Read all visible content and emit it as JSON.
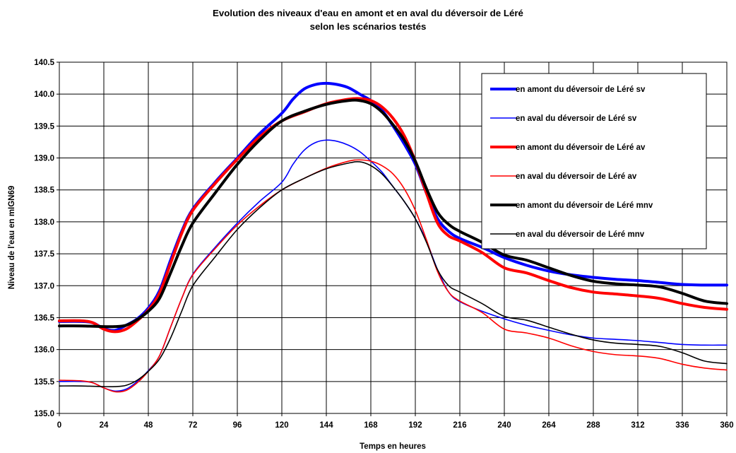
{
  "chart_data": {
    "type": "line",
    "title_line1": "Evolution des niveaux d'eau en amont et en aval du déversoir de Léré",
    "title_line2": "selon les scénarios testés",
    "xlabel": "Temps en heures",
    "ylabel": "Niveau de l'eau en mIGN69",
    "xlim": [
      0,
      360
    ],
    "ylim": [
      135.0,
      140.5
    ],
    "x_ticks": [
      0,
      24,
      48,
      72,
      96,
      120,
      144,
      168,
      192,
      216,
      240,
      264,
      288,
      312,
      336,
      360
    ],
    "y_ticks": [
      135.0,
      135.5,
      136.0,
      136.5,
      137.0,
      137.5,
      138.0,
      138.5,
      139.0,
      139.5,
      140.0,
      140.5
    ],
    "x_tick_labels": [
      "0",
      "24",
      "48",
      "72",
      "96",
      "120",
      "144",
      "168",
      "192",
      "216",
      "240",
      "264",
      "288",
      "312",
      "336",
      "360"
    ],
    "y_tick_labels": [
      "135.0",
      "135.5",
      "136.0",
      "136.5",
      "137.0",
      "137.5",
      "138.0",
      "138.5",
      "139.0",
      "139.5",
      "140.0",
      "140.5"
    ],
    "grid": true,
    "legend_position": "top-right",
    "series": [
      {
        "name": "en amont du déversoir de Léré sv",
        "color": "#0000ff",
        "weight": "thick",
        "points": [
          [
            0,
            136.44
          ],
          [
            12,
            136.44
          ],
          [
            18,
            136.42
          ],
          [
            24,
            136.33
          ],
          [
            30,
            136.3
          ],
          [
            36,
            136.38
          ],
          [
            42,
            136.48
          ],
          [
            48,
            136.65
          ],
          [
            54,
            136.92
          ],
          [
            60,
            137.4
          ],
          [
            66,
            137.85
          ],
          [
            72,
            138.2
          ],
          [
            84,
            138.62
          ],
          [
            96,
            139.0
          ],
          [
            108,
            139.38
          ],
          [
            120,
            139.7
          ],
          [
            126,
            139.92
          ],
          [
            132,
            140.08
          ],
          [
            138,
            140.15
          ],
          [
            144,
            140.17
          ],
          [
            150,
            140.15
          ],
          [
            156,
            140.1
          ],
          [
            162,
            140.0
          ],
          [
            168,
            139.9
          ],
          [
            174,
            139.75
          ],
          [
            180,
            139.5
          ],
          [
            186,
            139.22
          ],
          [
            192,
            138.9
          ],
          [
            198,
            138.45
          ],
          [
            204,
            138.05
          ],
          [
            210,
            137.85
          ],
          [
            216,
            137.74
          ],
          [
            228,
            137.6
          ],
          [
            240,
            137.44
          ],
          [
            252,
            137.32
          ],
          [
            264,
            137.23
          ],
          [
            276,
            137.17
          ],
          [
            288,
            137.13
          ],
          [
            300,
            137.1
          ],
          [
            312,
            137.08
          ],
          [
            324,
            137.05
          ],
          [
            336,
            137.02
          ],
          [
            348,
            137.01
          ],
          [
            360,
            137.01
          ]
        ]
      },
      {
        "name": "en aval du déversoir de Léré sv",
        "color": "#0000ff",
        "weight": "thin",
        "points": [
          [
            0,
            135.5
          ],
          [
            12,
            135.5
          ],
          [
            18,
            135.48
          ],
          [
            24,
            135.4
          ],
          [
            30,
            135.35
          ],
          [
            36,
            135.38
          ],
          [
            42,
            135.5
          ],
          [
            48,
            135.67
          ],
          [
            54,
            135.9
          ],
          [
            60,
            136.35
          ],
          [
            66,
            136.8
          ],
          [
            72,
            137.18
          ],
          [
            84,
            137.6
          ],
          [
            96,
            137.98
          ],
          [
            108,
            138.32
          ],
          [
            120,
            138.62
          ],
          [
            126,
            138.9
          ],
          [
            132,
            139.12
          ],
          [
            138,
            139.24
          ],
          [
            144,
            139.28
          ],
          [
            150,
            139.26
          ],
          [
            156,
            139.2
          ],
          [
            162,
            139.1
          ],
          [
            168,
            138.95
          ],
          [
            174,
            138.78
          ],
          [
            180,
            138.55
          ],
          [
            186,
            138.32
          ],
          [
            192,
            138.05
          ],
          [
            198,
            137.7
          ],
          [
            204,
            137.25
          ],
          [
            210,
            136.9
          ],
          [
            216,
            136.75
          ],
          [
            228,
            136.6
          ],
          [
            240,
            136.48
          ],
          [
            252,
            136.38
          ],
          [
            264,
            136.3
          ],
          [
            276,
            136.23
          ],
          [
            288,
            136.18
          ],
          [
            300,
            136.16
          ],
          [
            312,
            136.14
          ],
          [
            324,
            136.11
          ],
          [
            336,
            136.08
          ],
          [
            348,
            136.07
          ],
          [
            360,
            136.07
          ]
        ]
      },
      {
        "name": "en amont du déversoir de Léré av",
        "color": "#ff0000",
        "weight": "thick",
        "points": [
          [
            0,
            136.45
          ],
          [
            12,
            136.45
          ],
          [
            18,
            136.42
          ],
          [
            24,
            136.32
          ],
          [
            30,
            136.28
          ],
          [
            36,
            136.32
          ],
          [
            42,
            136.45
          ],
          [
            48,
            136.62
          ],
          [
            54,
            136.88
          ],
          [
            60,
            137.35
          ],
          [
            66,
            137.82
          ],
          [
            72,
            138.18
          ],
          [
            84,
            138.6
          ],
          [
            96,
            138.98
          ],
          [
            108,
            139.33
          ],
          [
            120,
            139.58
          ],
          [
            132,
            139.72
          ],
          [
            144,
            139.85
          ],
          [
            156,
            139.92
          ],
          [
            162,
            139.93
          ],
          [
            168,
            139.9
          ],
          [
            174,
            139.8
          ],
          [
            180,
            139.62
          ],
          [
            186,
            139.35
          ],
          [
            192,
            138.95
          ],
          [
            198,
            138.45
          ],
          [
            204,
            137.98
          ],
          [
            210,
            137.78
          ],
          [
            216,
            137.7
          ],
          [
            228,
            137.52
          ],
          [
            240,
            137.28
          ],
          [
            252,
            137.2
          ],
          [
            264,
            137.08
          ],
          [
            276,
            136.97
          ],
          [
            288,
            136.9
          ],
          [
            300,
            136.87
          ],
          [
            312,
            136.84
          ],
          [
            324,
            136.8
          ],
          [
            336,
            136.72
          ],
          [
            348,
            136.66
          ],
          [
            360,
            136.63
          ]
        ]
      },
      {
        "name": "en aval du déversoir de Léré av",
        "color": "#ff0000",
        "weight": "thin",
        "points": [
          [
            0,
            135.52
          ],
          [
            12,
            135.51
          ],
          [
            18,
            135.48
          ],
          [
            24,
            135.4
          ],
          [
            30,
            135.34
          ],
          [
            36,
            135.36
          ],
          [
            42,
            135.48
          ],
          [
            48,
            135.66
          ],
          [
            54,
            135.9
          ],
          [
            60,
            136.35
          ],
          [
            66,
            136.8
          ],
          [
            72,
            137.17
          ],
          [
            84,
            137.58
          ],
          [
            96,
            137.95
          ],
          [
            108,
            138.25
          ],
          [
            120,
            138.5
          ],
          [
            132,
            138.68
          ],
          [
            144,
            138.84
          ],
          [
            156,
            138.95
          ],
          [
            162,
            138.97
          ],
          [
            168,
            138.95
          ],
          [
            174,
            138.88
          ],
          [
            180,
            138.75
          ],
          [
            186,
            138.52
          ],
          [
            192,
            138.18
          ],
          [
            198,
            137.72
          ],
          [
            204,
            137.22
          ],
          [
            210,
            136.9
          ],
          [
            216,
            136.76
          ],
          [
            228,
            136.58
          ],
          [
            240,
            136.32
          ],
          [
            252,
            136.26
          ],
          [
            264,
            136.18
          ],
          [
            276,
            136.06
          ],
          [
            288,
            135.97
          ],
          [
            300,
            135.92
          ],
          [
            312,
            135.9
          ],
          [
            324,
            135.86
          ],
          [
            336,
            135.77
          ],
          [
            348,
            135.71
          ],
          [
            360,
            135.68
          ]
        ]
      },
      {
        "name": "en amont du déversoir de Léré mnv",
        "color": "#000000",
        "weight": "thick",
        "points": [
          [
            0,
            136.37
          ],
          [
            12,
            136.37
          ],
          [
            24,
            136.36
          ],
          [
            30,
            136.36
          ],
          [
            36,
            136.38
          ],
          [
            42,
            136.47
          ],
          [
            48,
            136.6
          ],
          [
            54,
            136.8
          ],
          [
            60,
            137.2
          ],
          [
            66,
            137.62
          ],
          [
            72,
            137.98
          ],
          [
            84,
            138.45
          ],
          [
            96,
            138.9
          ],
          [
            108,
            139.28
          ],
          [
            120,
            139.58
          ],
          [
            132,
            139.73
          ],
          [
            144,
            139.84
          ],
          [
            156,
            139.9
          ],
          [
            162,
            139.9
          ],
          [
            168,
            139.85
          ],
          [
            174,
            139.72
          ],
          [
            180,
            139.52
          ],
          [
            186,
            139.28
          ],
          [
            192,
            138.95
          ],
          [
            198,
            138.52
          ],
          [
            204,
            138.15
          ],
          [
            210,
            137.96
          ],
          [
            216,
            137.85
          ],
          [
            228,
            137.68
          ],
          [
            240,
            137.48
          ],
          [
            252,
            137.4
          ],
          [
            264,
            137.28
          ],
          [
            276,
            137.16
          ],
          [
            288,
            137.07
          ],
          [
            300,
            137.03
          ],
          [
            312,
            137.01
          ],
          [
            324,
            136.98
          ],
          [
            336,
            136.88
          ],
          [
            348,
            136.76
          ],
          [
            360,
            136.72
          ]
        ]
      },
      {
        "name": "en aval du déversoir de Léré mnv",
        "color": "#000000",
        "weight": "thin",
        "points": [
          [
            0,
            135.43
          ],
          [
            12,
            135.43
          ],
          [
            24,
            135.42
          ],
          [
            30,
            135.42
          ],
          [
            36,
            135.44
          ],
          [
            42,
            135.52
          ],
          [
            48,
            135.66
          ],
          [
            54,
            135.85
          ],
          [
            60,
            136.18
          ],
          [
            66,
            136.6
          ],
          [
            72,
            137.0
          ],
          [
            84,
            137.45
          ],
          [
            96,
            137.88
          ],
          [
            108,
            138.22
          ],
          [
            120,
            138.5
          ],
          [
            132,
            138.68
          ],
          [
            144,
            138.83
          ],
          [
            156,
            138.92
          ],
          [
            162,
            138.94
          ],
          [
            168,
            138.88
          ],
          [
            174,
            138.75
          ],
          [
            180,
            138.55
          ],
          [
            186,
            138.32
          ],
          [
            192,
            138.05
          ],
          [
            198,
            137.68
          ],
          [
            204,
            137.25
          ],
          [
            210,
            137.0
          ],
          [
            216,
            136.9
          ],
          [
            228,
            136.72
          ],
          [
            240,
            136.52
          ],
          [
            252,
            136.46
          ],
          [
            264,
            136.35
          ],
          [
            276,
            136.24
          ],
          [
            288,
            136.15
          ],
          [
            300,
            136.1
          ],
          [
            312,
            136.08
          ],
          [
            324,
            136.05
          ],
          [
            336,
            135.95
          ],
          [
            348,
            135.82
          ],
          [
            360,
            135.78
          ]
        ]
      }
    ]
  }
}
